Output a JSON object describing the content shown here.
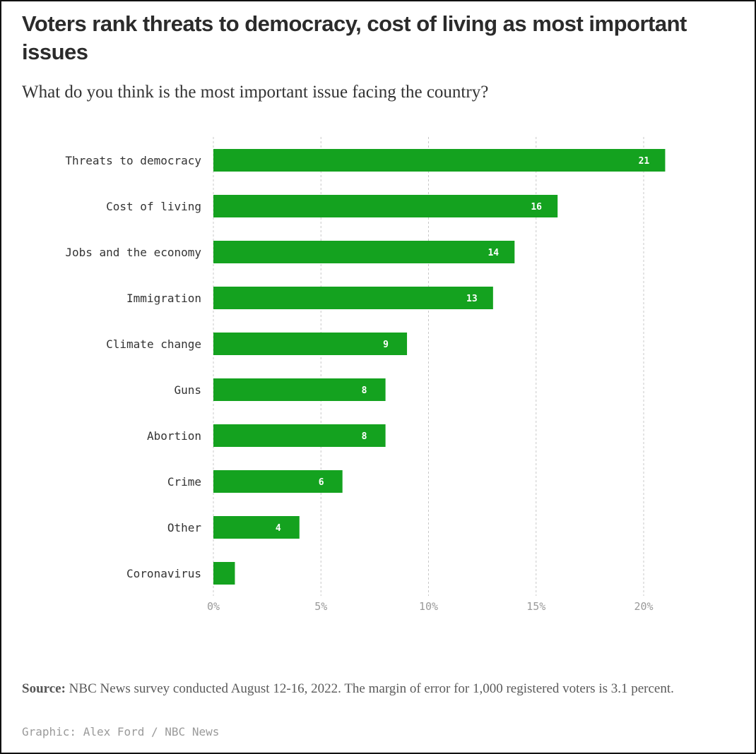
{
  "header": {
    "title": "Voters rank threats to democracy, cost of living as most important issues",
    "subtitle": "What do you think is the most important issue facing the country?"
  },
  "footer": {
    "source_label": "Source:",
    "source_text": "NBC News survey conducted August 12-16, 2022. The margin of error for 1,000 registered voters is 3.1 percent.",
    "credit": "Graphic: Alex Ford / NBC News"
  },
  "colors": {
    "bar": "#14a21f",
    "grid": "#c8c8c8"
  },
  "chart_data": {
    "type": "bar",
    "orientation": "horizontal",
    "title": "Voters rank threats to democracy, cost of living as most important issues",
    "subtitle": "What do you think is the most important issue facing the country?",
    "categories": [
      "Threats to democracy",
      "Cost of living",
      "Jobs and the economy",
      "Immigration",
      "Climate change",
      "Guns",
      "Abortion",
      "Crime",
      "Other",
      "Coronavirus"
    ],
    "values": [
      21,
      16,
      14,
      13,
      9,
      8,
      8,
      6,
      4,
      1
    ],
    "data_labels": [
      "21",
      "16",
      "14",
      "13",
      "9",
      "8",
      "8",
      "6",
      "4",
      ""
    ],
    "xlim": [
      0,
      21
    ],
    "xticks": [
      0,
      5,
      10,
      15,
      20
    ],
    "xtick_labels": [
      "0%",
      "5%",
      "10%",
      "15%",
      "20%"
    ],
    "xlabel": "",
    "ylabel": "",
    "grid": "vertical dashed"
  }
}
